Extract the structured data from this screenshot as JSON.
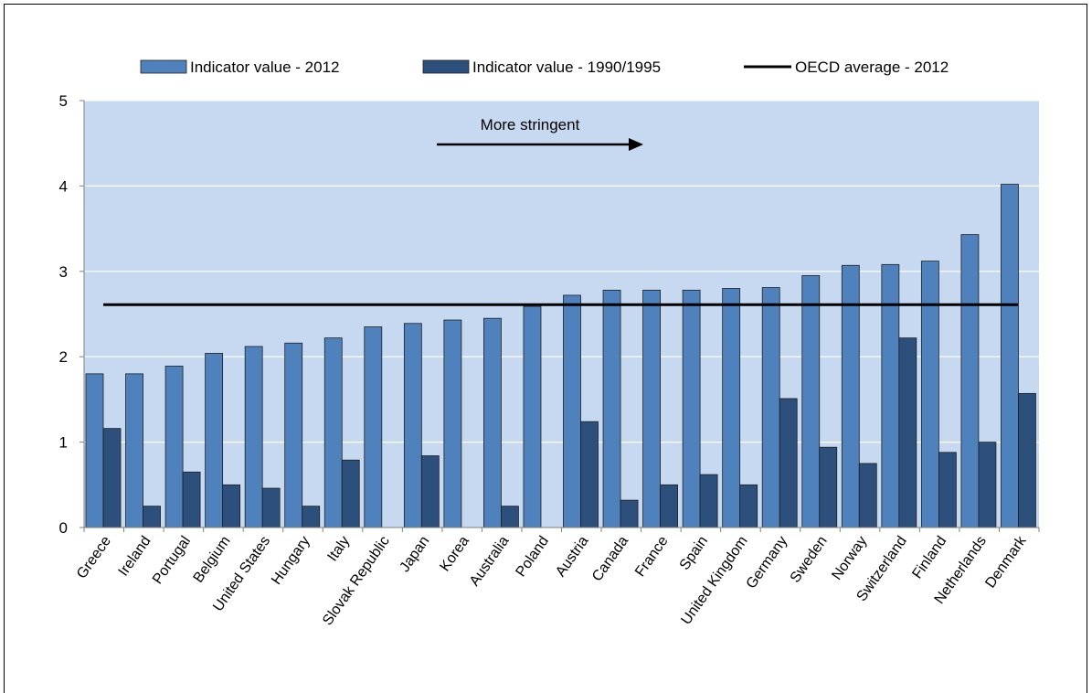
{
  "chart_data": {
    "type": "bar",
    "title": "",
    "xlabel": "",
    "ylabel": "",
    "ylim": [
      0,
      5
    ],
    "yticks": [
      "0",
      "1",
      "2",
      "3",
      "4",
      "5"
    ],
    "grid": true,
    "legend_position": "top",
    "categories": [
      "Greece",
      "Ireland",
      "Portugal",
      "Belgium",
      "United States",
      "Hungary",
      "Italy",
      "Slovak Republic",
      "Japan",
      "Korea",
      "Australia",
      "Poland",
      "Austria",
      "Canada",
      "France",
      "Spain",
      "United Kingdom",
      "Germany",
      "Sweden",
      "Norway",
      "Switzerland",
      "Finland",
      "Netherlands",
      "Denmark"
    ],
    "series": [
      {
        "name": "Indicator value - 2012",
        "color": "#4f81bd",
        "values": [
          1.8,
          1.8,
          1.89,
          2.04,
          2.12,
          2.16,
          2.22,
          2.35,
          2.39,
          2.43,
          2.45,
          2.59,
          2.72,
          2.78,
          2.78,
          2.78,
          2.8,
          2.81,
          2.95,
          3.07,
          3.08,
          3.12,
          3.43,
          4.02
        ]
      },
      {
        "name": "Indicator value - 1990/1995",
        "color": "#2c4f7c",
        "values": [
          1.16,
          0.25,
          0.65,
          0.5,
          0.46,
          0.25,
          0.79,
          0,
          0.84,
          0,
          0.25,
          0,
          1.24,
          0.32,
          0.5,
          0.62,
          0.5,
          1.51,
          0.94,
          0.75,
          2.22,
          0.88,
          1.0,
          1.57
        ]
      }
    ],
    "reference_line": {
      "name": "OECD average - 2012",
      "value": 2.61,
      "color": "#000000"
    },
    "annotation": {
      "text": "More stringent",
      "arrow": "right"
    },
    "plot_background": "#c6d9f0"
  }
}
